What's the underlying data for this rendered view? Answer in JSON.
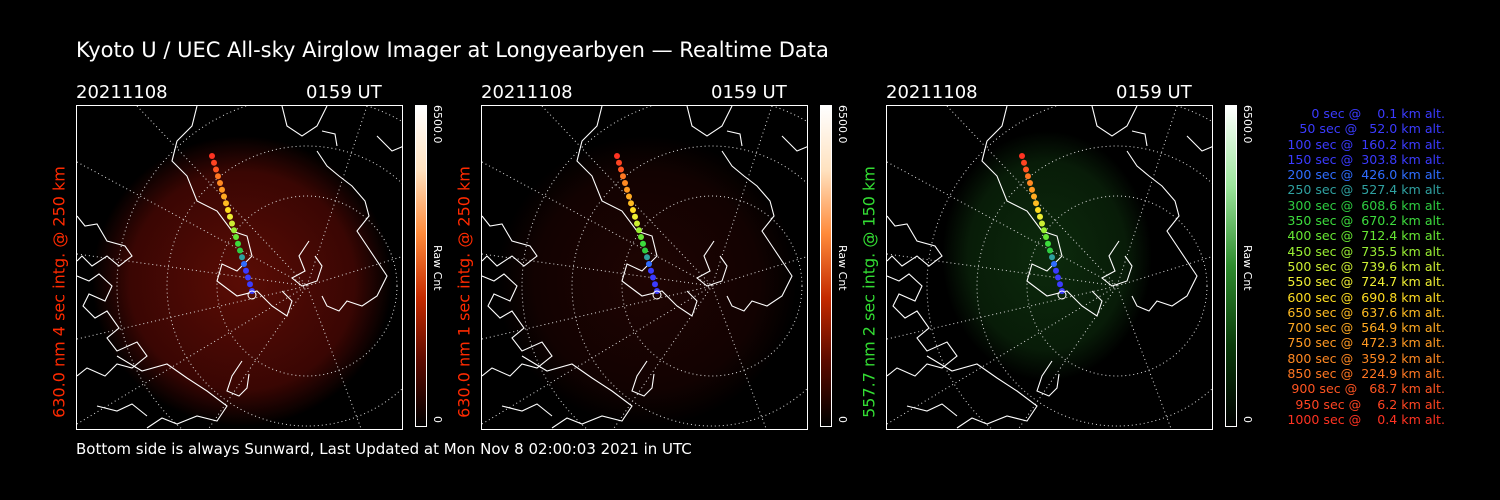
{
  "title": "Kyoto U / UEC All-sky Airglow Imager at Longyearbyen — Realtime Data",
  "footer": "Bottom side is always Sunward, Last Updated at Mon Nov  8 02:00:03 2021 in UTC",
  "panels": [
    {
      "date": "20211108",
      "time": "0159 UT",
      "ylabel": "630.0 nm 4 sec intg. @ 250 km",
      "ylabel_color": "#ff2a00",
      "cb_max": "6500.0",
      "cb_min": "0",
      "cb_unit": "Raw Cnt",
      "colorbar": "red",
      "glow": "strong-red"
    },
    {
      "date": "20211108",
      "time": "0159 UT",
      "ylabel": "630.0 nm 1 sec intg. @ 250 km",
      "ylabel_color": "#ff2a00",
      "cb_max": "6500.0",
      "cb_min": "0",
      "cb_unit": "Raw Cnt",
      "colorbar": "red",
      "glow": "faint-red"
    },
    {
      "date": "20211108",
      "time": "0159 UT",
      "ylabel": "557.7 nm 2 sec intg. @ 150 km",
      "ylabel_color": "#33dd33",
      "cb_max": "6500.0",
      "cb_min": "0",
      "cb_unit": "Raw Cnt",
      "colorbar": "green",
      "glow": "faint-green"
    }
  ],
  "legend": [
    {
      "text": "   0 sec @    0.1 km alt.",
      "color": "#3b3bff"
    },
    {
      "text": "  50 sec @   52.0 km alt.",
      "color": "#3b3bff"
    },
    {
      "text": " 100 sec @  160.2 km alt.",
      "color": "#3b3bff"
    },
    {
      "text": " 150 sec @  303.8 km alt.",
      "color": "#3b3bff"
    },
    {
      "text": " 200 sec @  426.0 km alt.",
      "color": "#2f6cff"
    },
    {
      "text": " 250 sec @  527.4 km alt.",
      "color": "#2fa0a0"
    },
    {
      "text": " 300 sec @  608.6 km alt.",
      "color": "#2ecc40"
    },
    {
      "text": " 350 sec @  670.2 km alt.",
      "color": "#3ddc3d"
    },
    {
      "text": " 400 sec @  712.4 km alt.",
      "color": "#66e633"
    },
    {
      "text": " 450 sec @  735.5 km alt.",
      "color": "#99ee33"
    },
    {
      "text": " 500 sec @  739.6 km alt.",
      "color": "#ccee33"
    },
    {
      "text": " 550 sec @  724.7 km alt.",
      "color": "#eeee33"
    },
    {
      "text": " 600 sec @  690.8 km alt.",
      "color": "#ffdd22"
    },
    {
      "text": " 650 sec @  637.6 km alt.",
      "color": "#ffbb22"
    },
    {
      "text": " 700 sec @  564.9 km alt.",
      "color": "#ffaa22"
    },
    {
      "text": " 750 sec @  472.3 km alt.",
      "color": "#ff9922"
    },
    {
      "text": " 800 sec @  359.2 km alt.",
      "color": "#ff8822"
    },
    {
      "text": " 850 sec @  224.9 km alt.",
      "color": "#ff7722"
    },
    {
      "text": " 900 sec @   68.7 km alt.",
      "color": "#ff5522"
    },
    {
      "text": " 950 sec @    6.2 km alt.",
      "color": "#ff4422"
    },
    {
      "text": "1000 sec @    0.4 km alt.",
      "color": "#ff3322"
    }
  ]
}
